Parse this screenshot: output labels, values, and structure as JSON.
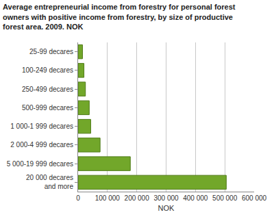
{
  "chart_data": {
    "type": "bar",
    "orientation": "horizontal",
    "title": "Average entrepreneurial income from forestry for personal forest\nowners with positive income from forestry, by size of productive\nforest area. 2009. NOK",
    "xlabel": "NOK",
    "categories": [
      "25-99 decares",
      "100-249 decares",
      "250-499 decares",
      "500-999 decares",
      "1 000-1 999 decares",
      "2 000-4 999 decares",
      "5 000-19 999 decares",
      "20 000 decares\nand more"
    ],
    "values": [
      15000,
      20000,
      25000,
      38000,
      43000,
      75000,
      178000,
      505000
    ],
    "color": "#72a72a",
    "xlim": [
      0,
      600000
    ],
    "xticks": [
      0,
      {
        "value": 100000,
        "label": "100 000"
      },
      {
        "value": 200000,
        "label": "200 000"
      },
      {
        "value": 300000,
        "label": "300 000"
      },
      {
        "value": 400000,
        "label": "400 000"
      },
      {
        "value": 500000,
        "label": "500 000"
      },
      {
        "value": 600000,
        "label": "600 000"
      }
    ],
    "grid": true
  }
}
